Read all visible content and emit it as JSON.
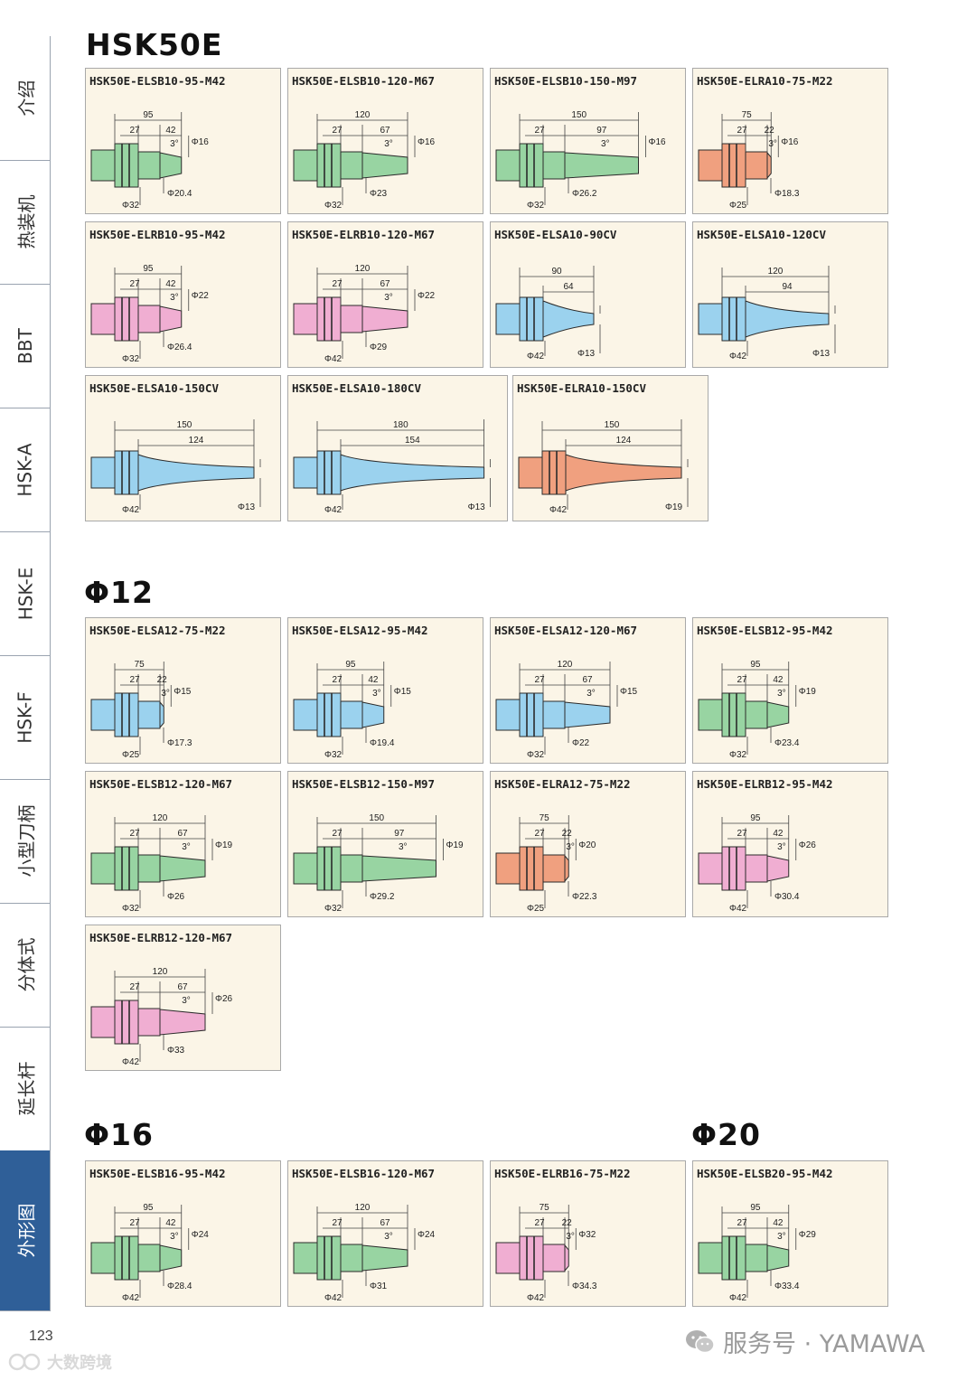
{
  "sidebar": {
    "tabs": [
      {
        "label": "介绍",
        "active": false
      },
      {
        "label": "热装机",
        "active": false
      },
      {
        "label": "BBT",
        "active": false
      },
      {
        "label": "HSK-A",
        "active": false
      },
      {
        "label": "HSK-E",
        "active": false
      },
      {
        "label": "HSK-F",
        "active": false
      },
      {
        "label": "小型刀柄",
        "active": false
      },
      {
        "label": "分体式",
        "active": false
      },
      {
        "label": "延长杆",
        "active": false
      },
      {
        "label": "外形图",
        "active": true
      }
    ]
  },
  "sections": [
    {
      "title": "HSK50E"
    },
    {
      "title": "Φ12"
    },
    {
      "title": "Φ16"
    },
    {
      "title": "Φ20"
    }
  ],
  "colors": {
    "green": "#98d4a2",
    "orange": "#f0a07f",
    "pink": "#f0aed2",
    "blue": "#9bd2ee",
    "card_bg": "#fbf5e7",
    "active_tab": "#2f5f98"
  },
  "cards": [
    {
      "name": "HSK50E-ELSB10-95-M42",
      "type": "step",
      "color": "green",
      "total": "95",
      "d1": "27",
      "d2": "42",
      "angle": "3°",
      "tip": "Φ16",
      "base": "Φ20.4",
      "flange": "Φ32"
    },
    {
      "name": "HSK50E-ELSB10-120-M67",
      "type": "step",
      "color": "green",
      "total": "120",
      "d1": "27",
      "d2": "67",
      "angle": "3°",
      "tip": "Φ16",
      "base": "Φ23",
      "flange": "Φ32"
    },
    {
      "name": "HSK50E-ELSB10-150-M97",
      "type": "step",
      "color": "green",
      "total": "150",
      "d1": "27",
      "d2": "97",
      "angle": "3°",
      "tip": "Φ16",
      "base": "Φ26.2",
      "flange": "Φ32"
    },
    {
      "name": "HSK50E-ELRA10-75-M22",
      "type": "step",
      "color": "orange",
      "total": "75",
      "d1": "27",
      "d2": "22",
      "angle": "3°",
      "tip": "Φ16",
      "base": "Φ18.3",
      "flange": "Φ25"
    },
    {
      "name": "HSK50E-ELRB10-95-M42",
      "type": "step",
      "color": "pink",
      "total": "95",
      "d1": "27",
      "d2": "42",
      "angle": "3°",
      "tip": "Φ22",
      "base": "Φ26.4",
      "flange": "Φ32"
    },
    {
      "name": "HSK50E-ELRB10-120-M67",
      "type": "step",
      "color": "pink",
      "total": "120",
      "d1": "27",
      "d2": "67",
      "angle": "3°",
      "tip": "Φ22",
      "base": "Φ29",
      "flange": "Φ42"
    },
    {
      "name": "HSK50E-ELSA10-90CV",
      "type": "cv",
      "color": "blue",
      "total": "90",
      "d2": "64",
      "tip": "Φ13",
      "flange": "Φ42"
    },
    {
      "name": "HSK50E-ELSA10-120CV",
      "type": "cv",
      "color": "blue",
      "total": "120",
      "d2": "94",
      "tip": "Φ13",
      "flange": "Φ42"
    },
    {
      "name": "HSK50E-ELSA10-150CV",
      "type": "cv",
      "color": "blue",
      "total": "150",
      "d2": "124",
      "tip": "Φ13",
      "flange": "Φ42"
    },
    {
      "name": "HSK50E-ELSA10-180CV",
      "type": "cv",
      "color": "blue",
      "total": "180",
      "d2": "154",
      "tip": "Φ13",
      "flange": "Φ42"
    },
    {
      "name": "HSK50E-ELRA10-150CV",
      "type": "cv",
      "color": "orange",
      "total": "150",
      "d2": "124",
      "tip": "Φ19",
      "flange": "Φ42"
    },
    {
      "name": "HSK50E-ELSA12-75-M22",
      "type": "step",
      "color": "blue",
      "total": "75",
      "d1": "27",
      "d2": "22",
      "angle": "3°",
      "tip": "Φ15",
      "base": "Φ17.3",
      "flange": "Φ25"
    },
    {
      "name": "HSK50E-ELSA12-95-M42",
      "type": "step",
      "color": "blue",
      "total": "95",
      "d1": "27",
      "d2": "42",
      "angle": "3°",
      "tip": "Φ15",
      "base": "Φ19.4",
      "flange": "Φ32"
    },
    {
      "name": "HSK50E-ELSA12-120-M67",
      "type": "step",
      "color": "blue",
      "total": "120",
      "d1": "27",
      "d2": "67",
      "angle": "3°",
      "tip": "Φ15",
      "base": "Φ22",
      "flange": "Φ32"
    },
    {
      "name": "HSK50E-ELSB12-95-M42",
      "type": "step",
      "color": "green",
      "total": "95",
      "d1": "27",
      "d2": "42",
      "angle": "3°",
      "tip": "Φ19",
      "base": "Φ23.4",
      "flange": "Φ32"
    },
    {
      "name": "HSK50E-ELSB12-120-M67",
      "type": "step",
      "color": "green",
      "total": "120",
      "d1": "27",
      "d2": "67",
      "angle": "3°",
      "tip": "Φ19",
      "base": "Φ26",
      "flange": "Φ32"
    },
    {
      "name": "HSK50E-ELSB12-150-M97",
      "type": "step",
      "color": "green",
      "total": "150",
      "d1": "27",
      "d2": "97",
      "angle": "3°",
      "tip": "Φ19",
      "base": "Φ29.2",
      "flange": "Φ32"
    },
    {
      "name": "HSK50E-ELRA12-75-M22",
      "type": "step",
      "color": "orange",
      "total": "75",
      "d1": "27",
      "d2": "22",
      "angle": "3°",
      "tip": "Φ20",
      "base": "Φ22.3",
      "flange": "Φ25"
    },
    {
      "name": "HSK50E-ELRB12-95-M42",
      "type": "step",
      "color": "pink",
      "total": "95",
      "d1": "27",
      "d2": "42",
      "angle": "3°",
      "tip": "Φ26",
      "base": "Φ30.4",
      "flange": "Φ42"
    },
    {
      "name": "HSK50E-ELRB12-120-M67",
      "type": "step",
      "color": "pink",
      "total": "120",
      "d1": "27",
      "d2": "67",
      "angle": "3°",
      "tip": "Φ26",
      "base": "Φ33",
      "flange": "Φ42"
    },
    {
      "name": "HSK50E-ELSB16-95-M42",
      "type": "step",
      "color": "green",
      "total": "95",
      "d1": "27",
      "d2": "42",
      "angle": "3°",
      "tip": "Φ24",
      "base": "Φ28.4",
      "flange": "Φ42"
    },
    {
      "name": "HSK50E-ELSB16-120-M67",
      "type": "step",
      "color": "green",
      "total": "120",
      "d1": "27",
      "d2": "67",
      "angle": "3°",
      "tip": "Φ24",
      "base": "Φ31",
      "flange": "Φ42"
    },
    {
      "name": "HSK50E-ELRB16-75-M22",
      "type": "step",
      "color": "pink",
      "total": "75",
      "d1": "27",
      "d2": "22",
      "angle": "3°",
      "tip": "Φ32",
      "base": "Φ34.3",
      "flange": "Φ42"
    },
    {
      "name": "HSK50E-ELSB20-95-M42",
      "type": "step",
      "color": "green",
      "total": "95",
      "d1": "27",
      "d2": "42",
      "angle": "3°",
      "tip": "Φ29",
      "base": "Φ33.4",
      "flange": "Φ42"
    }
  ],
  "footer": {
    "page_number": "123",
    "brand": "服务号 · YAMAWA",
    "watermark": "大数跨境"
  }
}
